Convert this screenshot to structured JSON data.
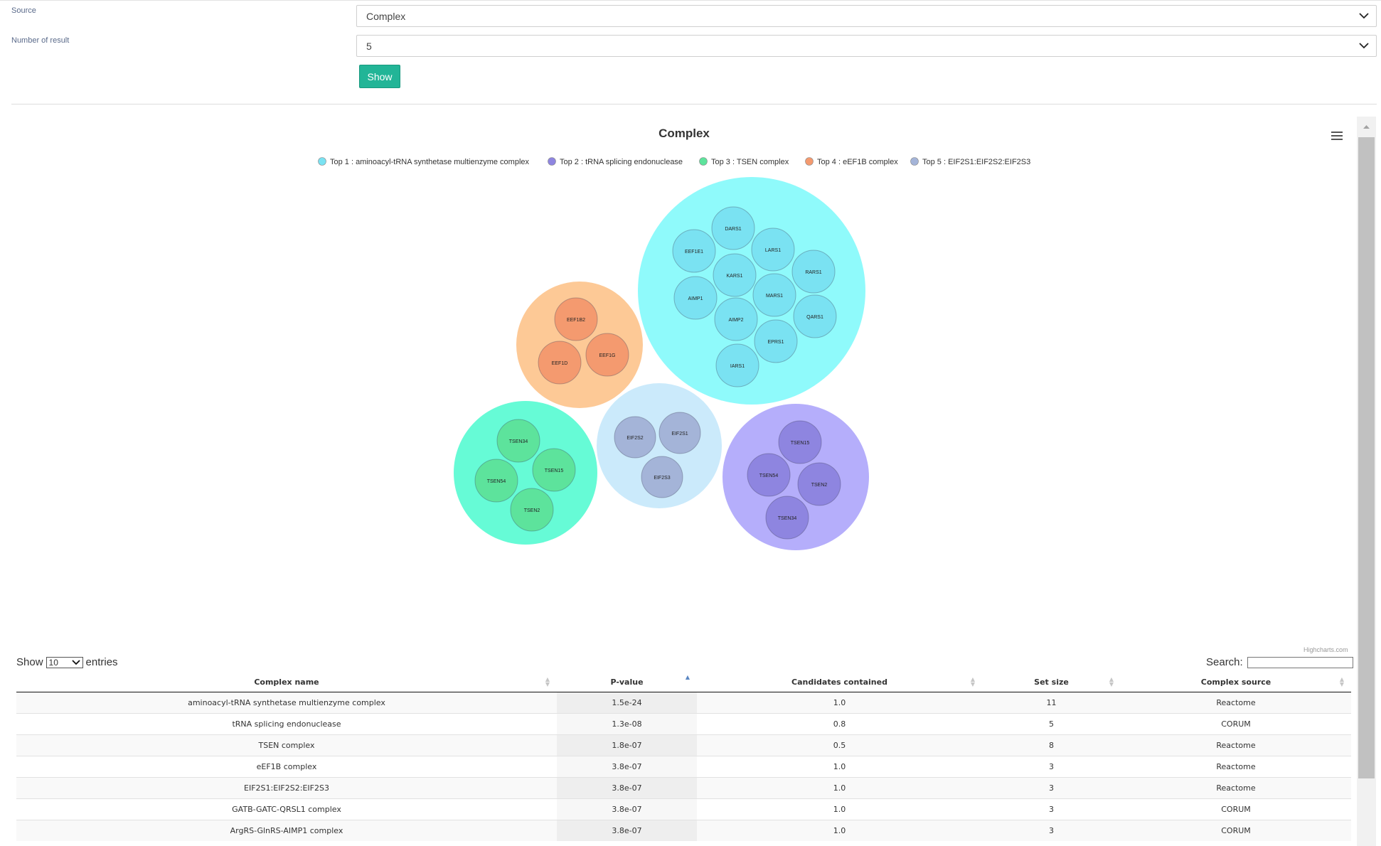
{
  "form": {
    "source_label": "Source",
    "source_value": "Complex",
    "number_label": "Number of result",
    "number_value": "5",
    "show_button": "Show"
  },
  "chart_data": {
    "type": "packedbubble",
    "title": "Complex",
    "series": [
      {
        "name": "Top 1 : aminoacyl-tRNA synthetase multienzyme complex",
        "color": "#7ae2f2",
        "outer_color": "#8ffafb",
        "points": [
          "DARS1",
          "EEF1E1",
          "LARS1",
          "KARS1",
          "RARS1",
          "AIMP1",
          "MARS1",
          "AIMP2",
          "QARS1",
          "EPRS1",
          "IARS1"
        ]
      },
      {
        "name": "Top 2 : tRNA splicing endonuclease",
        "color": "#8e85e0",
        "outer_color": "#b5aefb",
        "points": [
          "TSEN15",
          "TSEN54",
          "TSEN2",
          "TSEN34"
        ]
      },
      {
        "name": "Top 3 : TSEN complex",
        "color": "#5de39c",
        "outer_color": "#66fbd6",
        "points": [
          "TSEN34",
          "TSEN15",
          "TSEN54",
          "TSEN2"
        ]
      },
      {
        "name": "Top 4 : eEF1B complex",
        "color": "#f49a6f",
        "outer_color": "#fdc996",
        "points": [
          "EEF1B2",
          "EEF1G",
          "EEF1D"
        ]
      },
      {
        "name": "Top 5 : EIF2S1:EIF2S2:EIF2S3",
        "color": "#a4b4d8",
        "outer_color": "#cbeafb",
        "points": [
          "EIF2S2",
          "EIF2S1",
          "EIF2S3"
        ]
      }
    ],
    "credits": "Highcharts.com"
  },
  "table": {
    "length_prefix": "Show",
    "length_value": "10",
    "length_suffix": "entries",
    "search_label": "Search:",
    "columns": [
      "Complex name",
      "P-value",
      "Candidates contained",
      "Set size",
      "Complex source"
    ],
    "rows": [
      [
        "aminoacyl-tRNA synthetase multienzyme complex",
        "1.5e-24",
        "1.0",
        "11",
        "Reactome"
      ],
      [
        "tRNA splicing endonuclease",
        "1.3e-08",
        "0.8",
        "5",
        "CORUM"
      ],
      [
        "TSEN complex",
        "1.8e-07",
        "0.5",
        "8",
        "Reactome"
      ],
      [
        "eEF1B complex",
        "3.8e-07",
        "1.0",
        "3",
        "Reactome"
      ],
      [
        "EIF2S1:EIF2S2:EIF2S3",
        "3.8e-07",
        "1.0",
        "3",
        "Reactome"
      ],
      [
        "GATB-GATC-QRSL1 complex",
        "3.8e-07",
        "1.0",
        "3",
        "CORUM"
      ],
      [
        "ArgRS-GlnRS-AIMP1 complex",
        "3.8e-07",
        "1.0",
        "3",
        "CORUM"
      ]
    ]
  }
}
